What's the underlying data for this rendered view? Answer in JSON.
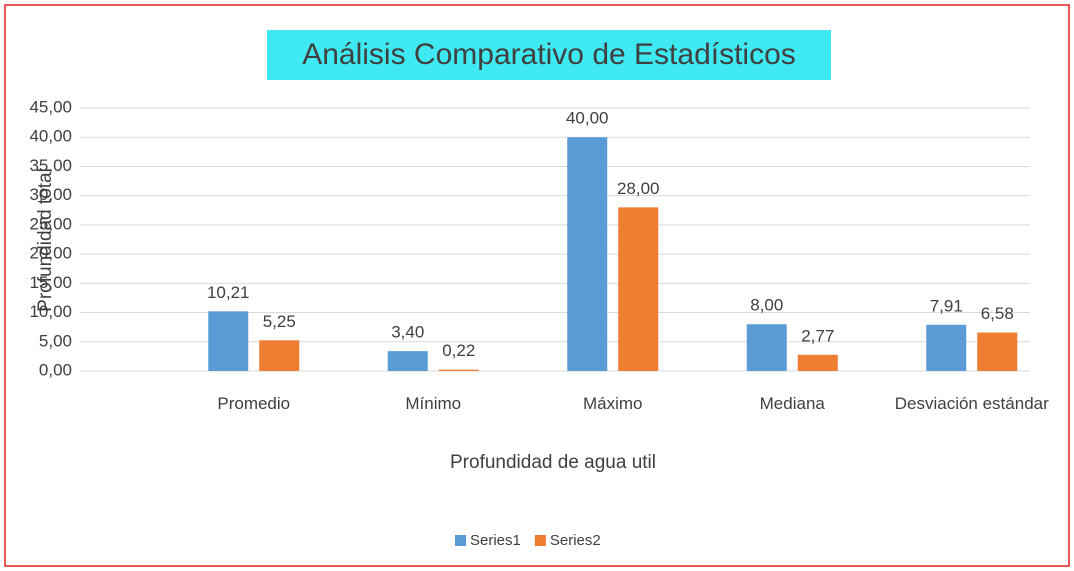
{
  "chart_data": {
    "type": "bar",
    "title": "Análisis Comparativo de Estadísticos",
    "x_label": "Profundidad de agua util",
    "y_label": "Profundidad total",
    "categories": [
      "Promedio",
      "Mínimo",
      "Máximo",
      "Mediana",
      "Desviación estándar"
    ],
    "series": [
      {
        "name": "Series1",
        "color": "#5b9bd5",
        "values": [
          10.21,
          3.4,
          40.0,
          8.0,
          7.91
        ],
        "value_labels": [
          "10,21",
          "3,40",
          "40,00",
          "8,00",
          "7,91"
        ]
      },
      {
        "name": "Series2",
        "color": "#ed7d31",
        "values": [
          5.25,
          0.22,
          28.0,
          2.77,
          6.58
        ],
        "value_labels": [
          "5,25",
          "0,22",
          "28,00",
          "2,77",
          "6,58"
        ]
      }
    ],
    "ylim": [
      0,
      45
    ],
    "yticks": [
      {
        "value": 0,
        "label": "0,00"
      },
      {
        "value": 5,
        "label": "5,00"
      },
      {
        "value": 10,
        "label": "10,00"
      },
      {
        "value": 15,
        "label": "15,00"
      },
      {
        "value": 20,
        "label": "20,00"
      },
      {
        "value": 25,
        "label": "25,00"
      },
      {
        "value": 30,
        "label": "30,00"
      },
      {
        "value": 35,
        "label": "35,00"
      },
      {
        "value": 40,
        "label": "40,00"
      },
      {
        "value": 45,
        "label": "45,00"
      }
    ],
    "grid": true,
    "legend": "bottom"
  }
}
